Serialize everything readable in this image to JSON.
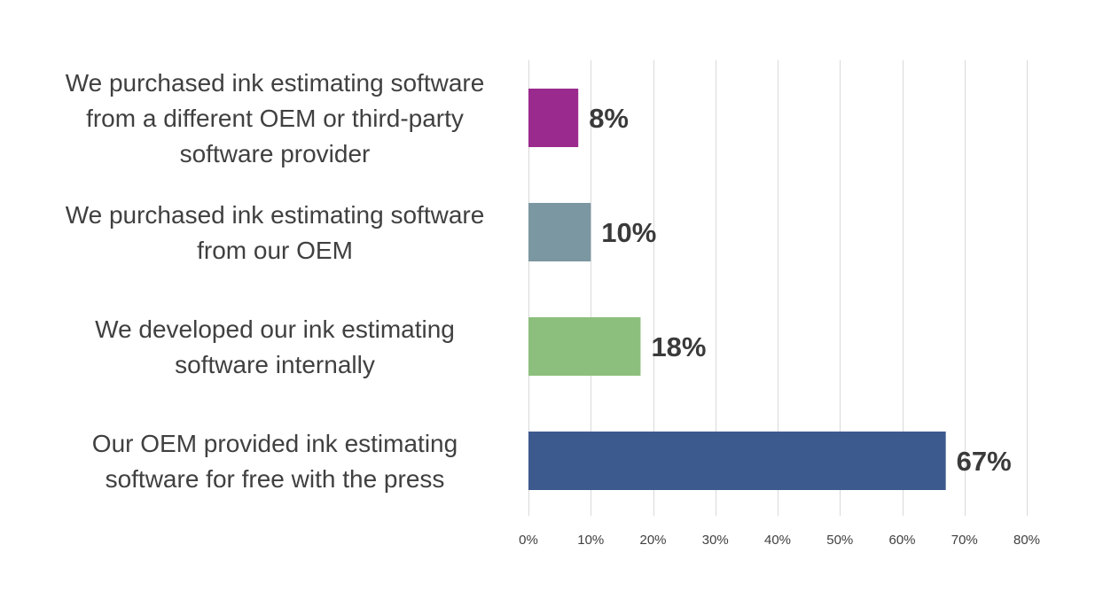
{
  "chart_data": {
    "type": "bar",
    "orientation": "horizontal",
    "categories": [
      [
        "We purchased ink estimating software",
        "from a different OEM or third-party",
        "software provider"
      ],
      [
        "We purchased ink estimating software",
        "from our OEM"
      ],
      [
        "We developed our ink estimating",
        "software internally"
      ],
      [
        "Our OEM provided ink estimating",
        "software for free with the press"
      ]
    ],
    "values": [
      8,
      10,
      18,
      67
    ],
    "data_labels": [
      "8%",
      "10%",
      "18%",
      "67%"
    ],
    "colors": [
      "#9b2a8e",
      "#7b97a1",
      "#8cbf7d",
      "#3d5a8f"
    ],
    "xlim": [
      0,
      80
    ],
    "x_ticks": [
      0,
      10,
      20,
      30,
      40,
      50,
      60,
      70,
      80
    ],
    "x_tick_labels": [
      "0%",
      "10%",
      "20%",
      "30%",
      "40%",
      "50%",
      "60%",
      "70%",
      "80%"
    ],
    "grid": true,
    "title": "",
    "xlabel": "",
    "ylabel": ""
  }
}
